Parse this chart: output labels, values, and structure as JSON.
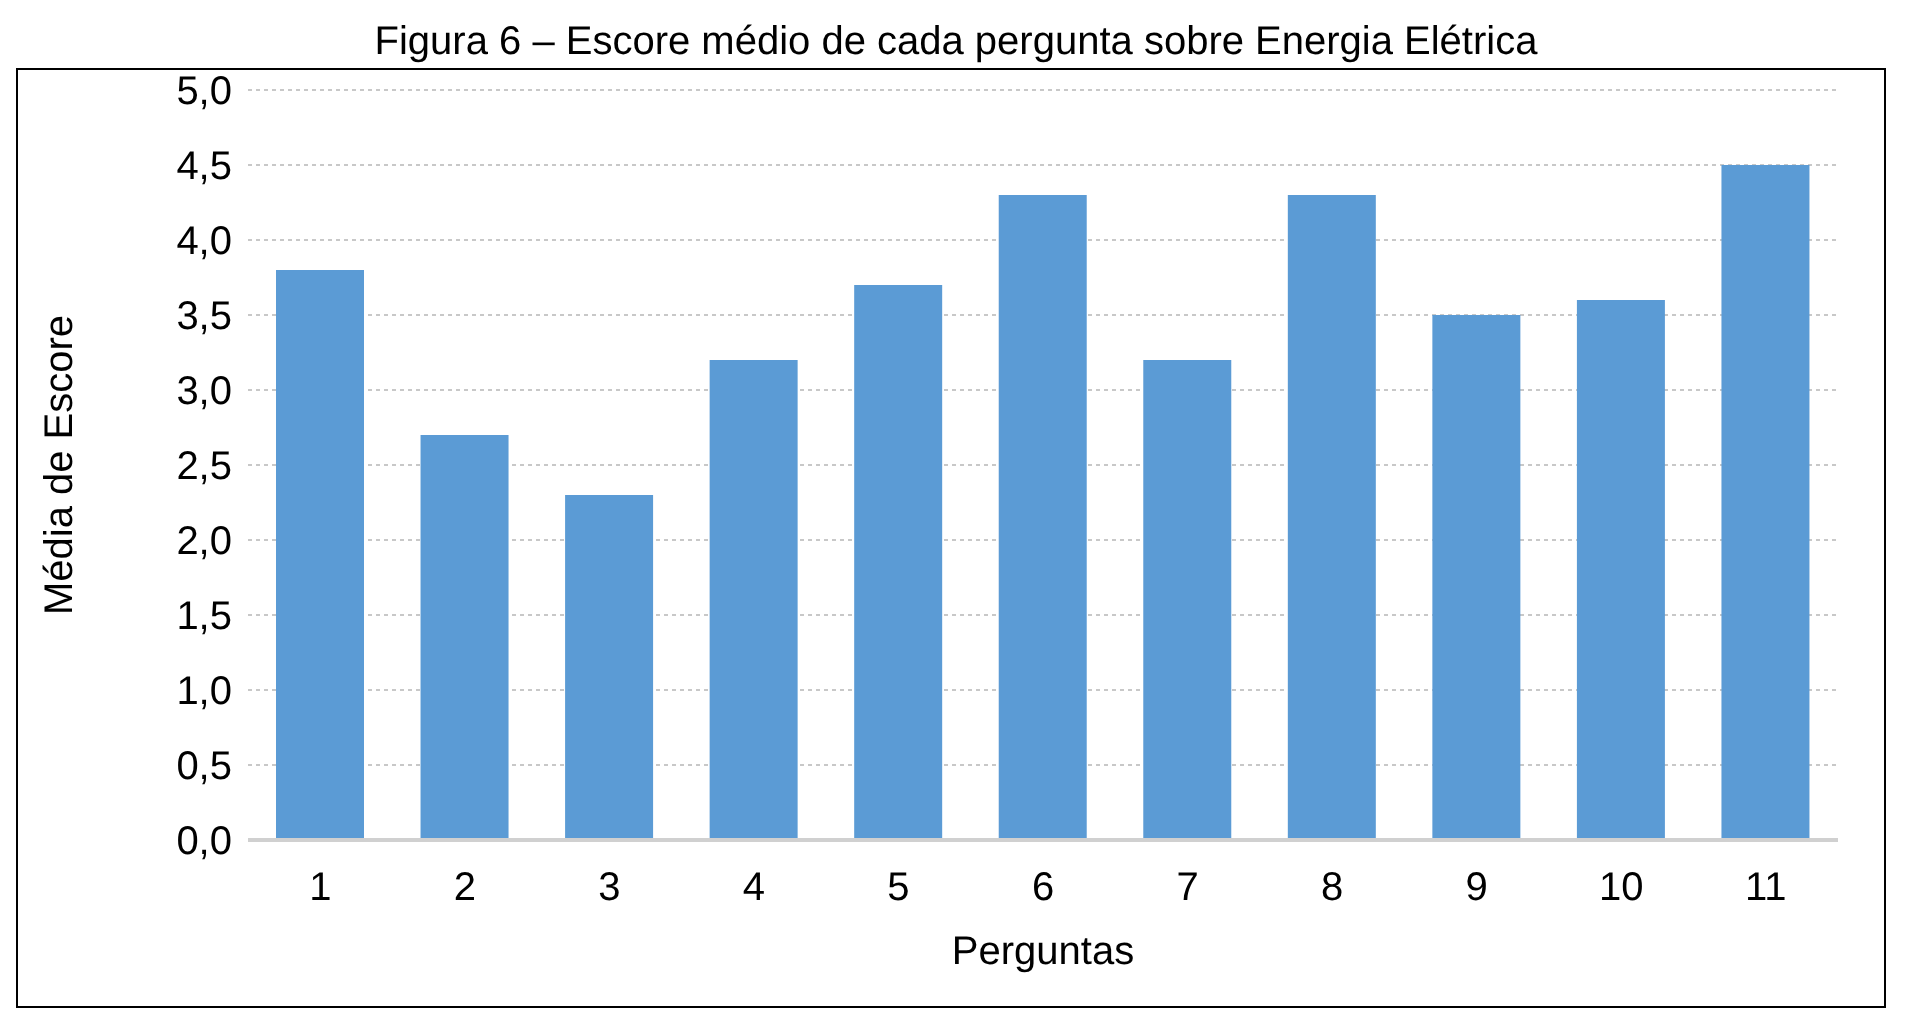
{
  "chart_data": {
    "type": "bar",
    "title": "Figura 6 – Escore médio de cada pergunta sobre Energia Elétrica",
    "xlabel": "Perguntas",
    "ylabel": "Média de Escore",
    "categories": [
      "1",
      "2",
      "3",
      "4",
      "5",
      "6",
      "7",
      "8",
      "9",
      "10",
      "11"
    ],
    "values": [
      3.8,
      2.7,
      2.3,
      3.2,
      3.7,
      4.3,
      3.2,
      4.3,
      3.5,
      3.6,
      4.5
    ],
    "color": "#5b9bd5",
    "ylim": [
      0,
      5
    ],
    "yticks": [
      {
        "value": 0,
        "label": "0,0"
      },
      {
        "value": 0.5,
        "label": "0,5"
      },
      {
        "value": 1,
        "label": "1,0"
      },
      {
        "value": 1.5,
        "label": "1,5"
      },
      {
        "value": 2,
        "label": "2,0"
      },
      {
        "value": 2.5,
        "label": "2,5"
      },
      {
        "value": 3,
        "label": "3,0"
      },
      {
        "value": 3.5,
        "label": "3,5"
      },
      {
        "value": 4,
        "label": "4,0"
      },
      {
        "value": 4.5,
        "label": "4,5"
      },
      {
        "value": 5,
        "label": "5,0"
      }
    ],
    "grid": "y"
  }
}
